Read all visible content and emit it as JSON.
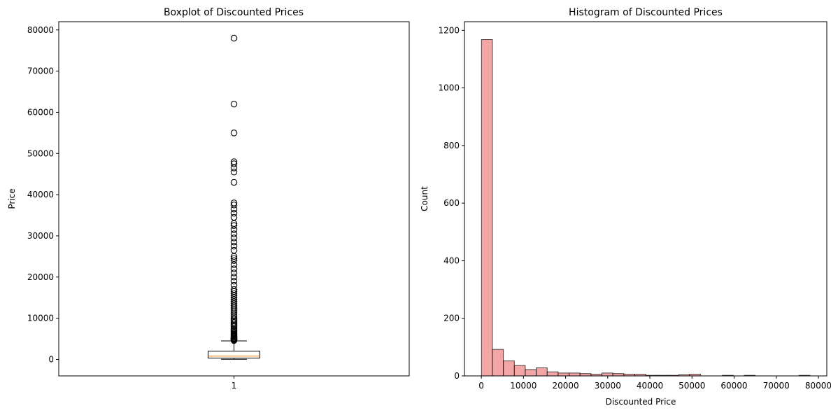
{
  "chart_data": [
    {
      "type": "boxplot",
      "title": "Boxplot of Discounted Prices",
      "xlabel": "",
      "ylabel": "Price",
      "ylim": [
        -4000,
        82000
      ],
      "yticks": [
        0,
        10000,
        20000,
        30000,
        40000,
        50000,
        60000,
        70000,
        80000
      ],
      "xticks": [
        "1"
      ],
      "grid": false,
      "box": {
        "whisker_low": 39,
        "q1": 325,
        "median": 799,
        "q3": 1999,
        "whisker_high": 4500
      },
      "outliers": [
        4600,
        4700,
        4800,
        4900,
        5000,
        5100,
        5200,
        5400,
        5600,
        5800,
        6000,
        6200,
        6500,
        6800,
        7000,
        7300,
        7600,
        8000,
        8300,
        8600,
        9000,
        9300,
        9600,
        10000,
        10500,
        11000,
        11500,
        12000,
        12500,
        13000,
        13500,
        14000,
        14500,
        15000,
        15500,
        16000,
        16500,
        17000,
        18000,
        19000,
        20000,
        21000,
        22000,
        23000,
        24000,
        24500,
        25000,
        26500,
        27500,
        28500,
        29500,
        30500,
        31500,
        32500,
        33000,
        34500,
        35500,
        36500,
        37500,
        38000,
        43000,
        45500,
        46500,
        47500,
        48000,
        55000,
        62000,
        78000
      ]
    },
    {
      "type": "histogram",
      "title": "Histogram of Discounted Prices",
      "xlabel": "Discounted Price",
      "ylabel": "Count",
      "xlim": [
        -4000,
        82000
      ],
      "ylim": [
        0,
        1230
      ],
      "xticks": [
        0,
        10000,
        20000,
        30000,
        40000,
        50000,
        60000,
        70000,
        80000
      ],
      "yticks": [
        0,
        200,
        400,
        600,
        800,
        1000,
        1200
      ],
      "grid": false,
      "bin_start": 39,
      "bin_width": 2599,
      "values": [
        1168,
        92,
        52,
        36,
        22,
        28,
        14,
        10,
        10,
        8,
        6,
        10,
        8,
        6,
        6,
        2,
        2,
        2,
        4,
        6,
        0,
        0,
        2,
        0,
        2,
        0,
        0,
        0,
        0,
        2
      ],
      "fill": "#f08080",
      "edge": "#000000"
    }
  ]
}
